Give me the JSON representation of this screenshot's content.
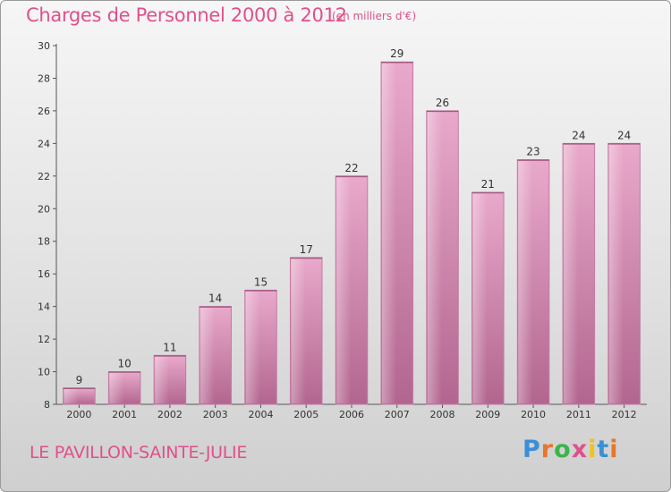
{
  "chart_data": {
    "type": "bar",
    "title": "Charges de Personnel 2000 à 2012",
    "subtitle": "(en milliers d'€)",
    "categories": [
      "2000",
      "2001",
      "2002",
      "2003",
      "2004",
      "2005",
      "2006",
      "2007",
      "2008",
      "2009",
      "2010",
      "2011",
      "2012"
    ],
    "values": [
      9,
      10,
      11,
      14,
      15,
      17,
      22,
      29,
      26,
      21,
      23,
      24,
      24
    ],
    "ylim": [
      8,
      30
    ],
    "yticks": [
      8,
      10,
      12,
      14,
      16,
      18,
      20,
      22,
      24,
      26,
      28,
      30
    ],
    "xlabel": "",
    "ylabel": "",
    "grid": false,
    "bar_color": "#d98bb5"
  },
  "footer": {
    "city": "LE PAVILLON-SAINTE-JULIE",
    "brand_letters": [
      {
        "ch": "P",
        "color": "#3b8fd6"
      },
      {
        "ch": "r",
        "color": "#e8762a"
      },
      {
        "ch": "o",
        "color": "#3bb54a"
      },
      {
        "ch": "x",
        "color": "#e0508c"
      },
      {
        "ch": "i",
        "color": "#f2c21b"
      },
      {
        "ch": "t",
        "color": "#3b8fd6"
      },
      {
        "ch": "i",
        "color": "#e8762a"
      }
    ]
  }
}
